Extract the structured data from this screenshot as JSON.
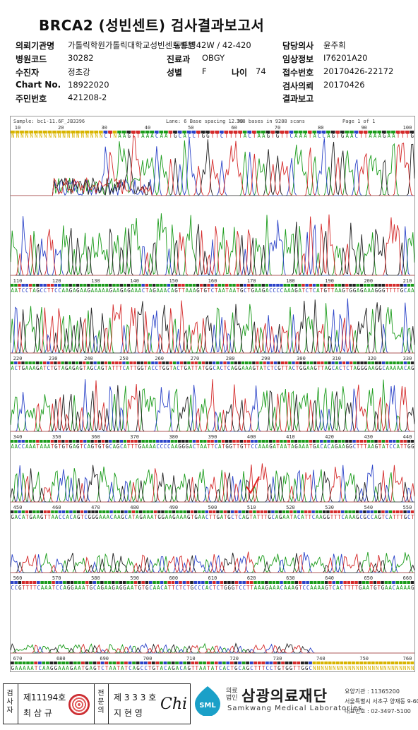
{
  "report": {
    "title": "BRCA2 (성빈센트) 검사결과보고서"
  },
  "info": {
    "requester_label": "의뢰기관명",
    "requester_value": "가톨릭학원가톨릭대학교성빈센트병원",
    "requester_ward": "동트병42W / 42-420",
    "doctor_label": "담당의사",
    "doctor_value": "윤주희",
    "hospital_code_label": "병원코드",
    "hospital_code_value": "30282",
    "dept_label": "진료과",
    "dept_value": "OBGY",
    "clinical_info_label": "임상정보",
    "clinical_info_value": "I76201A20",
    "patient_label": "수진자",
    "patient_value": "정초강",
    "sex_label": "성별",
    "sex_value": "F",
    "age_label": "나이",
    "age_value": "74",
    "receipt_label": "접수번호",
    "receipt_value": "20170426-22172",
    "chart_label": "Chart No.",
    "chart_value": "18922020",
    "test_request_label": "검사의뢰",
    "test_request_value": "20170426",
    "rrn_label": "주민번호",
    "rrn_value": "421208-2",
    "result_label": "결과보고",
    "result_value": ""
  },
  "chromatogram": {
    "sample_header": "Sample: bc1-11.6F_JB3396",
    "lane": "Lane: 6  Base spacing 12.99",
    "bases": "768 bases in 9288 scans",
    "page": "Page 1 of 1",
    "sequences": [
      "NNNNNNNNNNNNNNNNNNNNCTNAAGTTAAACAATGCACCTGGTTCTTTTACTAAGTGTTCAAATACCAGTGAACTTAAAGAATTTG",
      "AATCCTAGCCTTCCAAGAGAAGAAAAAGAAGAGAAACTAGAAACAGTTAAAGTGTCTAATAATGCTGAAGACCCCAAAGATCTCATGTTAAGTGGAGAAAGGGTTTTGCAA",
      "ACTGAAAGATCTGTAGAGAGTAGCAGTATTTCATTGGTACCTGGTACTGATTATGGCACTCAGGAAAGTATCTCGTTACTGGAAGTTAGCACTCTAGGGAAGGCAAAAACAG",
      "AACCAAATAAATGTGTGAGTCAGTGTGCAGCATTTGAAAACCCCAAGGGACTAATTCATGGTTGTTCCAAAGATAATAGAAATGACACAGAAGGCTTTAAGTATCCATTGG",
      "GACATGAAGTTAACCACAGTCGGGAAACAAGCATAGAAATGGAAGAAAGTGAACTTGATGCTCAGTATTTGCAGAATACATTCAAGGTTTCAAAGCGCCAGTCATTTGCT",
      "CCGTTTTCAAATCCAGGAAATGCAGAAGAGGAATGTGCAACATTCTCTGCCCACTCTGGGTCCTTAAAGAAACAAAGTCCAAAAGTCACTTTTGAATGTGAACAAAAG",
      "GAAAAATCAAGGAAAGAATGAGTCTAATATCAGCCTGTACAGACAGTTAATATCACTGCAGCTTTCCTGTGGTTGGCNNNNNNNNNNNNNNNNNNNNNNNNNN"
    ],
    "position_labels": [
      [
        "10",
        "20",
        "30",
        "40",
        "50",
        "60",
        "70",
        "80",
        "90",
        "100"
      ],
      [
        "110",
        "120",
        "130",
        "140",
        "150",
        "160",
        "170",
        "180",
        "190",
        "200",
        "210"
      ],
      [
        "220",
        "230",
        "240",
        "250",
        "260",
        "270",
        "280",
        "290",
        "300",
        "310",
        "320",
        "330"
      ],
      [
        "340",
        "350",
        "360",
        "370",
        "380",
        "390",
        "400",
        "410",
        "420",
        "430",
        "440"
      ],
      [
        "450",
        "460",
        "470",
        "480",
        "490",
        "500",
        "510",
        "520",
        "530",
        "540",
        "550"
      ],
      [
        "560",
        "570",
        "580",
        "590",
        "600",
        "610",
        "620",
        "630",
        "640",
        "650",
        "660"
      ],
      [
        "670",
        "680",
        "690",
        "700",
        "710",
        "720",
        "730",
        "740",
        "750",
        "760"
      ]
    ],
    "colors": {
      "A": "#1a9b1a",
      "C": "#2b43c8",
      "G": "#222222",
      "T": "#d42a2a",
      "N": "#d8b400",
      "mark": "#e32222"
    }
  },
  "footer": {
    "reviewer_role": "검사자",
    "reviewer_no": "제11194호",
    "reviewer_name": "최 삼 규",
    "approver_role": "전문의",
    "approver_no": "제 3 3 3 호",
    "approver_name": "지 현 영",
    "approver_sign": "Chi",
    "logo_text": "SML",
    "org_type": "의료\n법인",
    "company_name": "삼광의료재단",
    "company_en": "Samkwang Medical Laboratories",
    "license": "요양기관 : 11365200",
    "address": "서울특별시 서초구 양재동 9-60",
    "phone": "대표번호 : 02-3497-5100"
  }
}
